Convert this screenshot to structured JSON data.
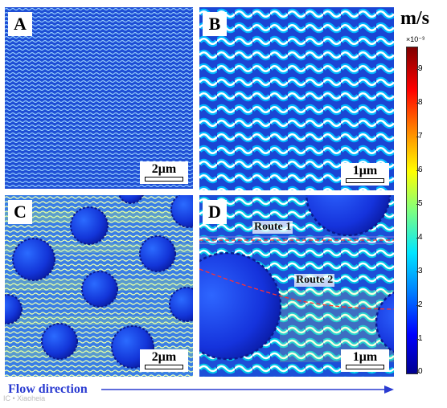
{
  "panels": [
    {
      "id": "A",
      "label": "A",
      "scale": "2μm"
    },
    {
      "id": "B",
      "label": "B",
      "scale": "1μm"
    },
    {
      "id": "C",
      "label": "C",
      "scale": "2μm"
    },
    {
      "id": "D",
      "label": "D",
      "scale": "1μm",
      "routes": [
        "Route 1",
        "Route 2"
      ]
    }
  ],
  "colorbar": {
    "unit": "m/s",
    "exponent": "×10⁻³",
    "ticks": [
      "9",
      "8",
      "7",
      "6",
      "5",
      "4",
      "3",
      "2",
      "1",
      "0"
    ],
    "min": 0,
    "max": 9.6,
    "colors": [
      "#00008f",
      "#0000ff",
      "#007fff",
      "#00e5ff",
      "#7fff7f",
      "#ffff00",
      "#ff8000",
      "#ff0000",
      "#7f0000"
    ]
  },
  "flow": {
    "label": "Flow direction"
  },
  "watermark": "IC • Xiaoheia"
}
